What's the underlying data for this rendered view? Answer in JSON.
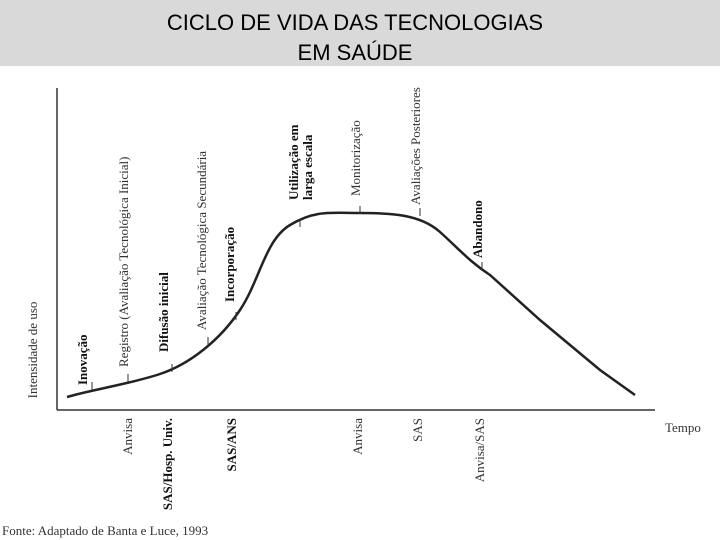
{
  "header": {
    "title_lines": [
      "CICLO DE VIDA DAS TECNOLOGIAS",
      "EM SAÚDE"
    ]
  },
  "diagram": {
    "y_axis_label": "Intensidade de uso",
    "x_axis_label": "Tempo",
    "stages": [
      [
        "Inovação"
      ],
      [
        "Registro (Avaliação Tecnológica Inicial)"
      ],
      [
        "Difusão inicial"
      ],
      [
        "Avaliação Tecnológica Secundária"
      ],
      [
        "Incorporação"
      ],
      [
        "Utilização em",
        "larga escala"
      ],
      [
        "Monitorização"
      ],
      [
        "Avaliações Posteriores"
      ],
      [
        "Abandono"
      ]
    ],
    "agencies": [
      "Anvisa",
      "SAS/Hosp. Univ.",
      "SAS/ANS",
      "Anvisa",
      "SAS",
      "Anvisa/SAS"
    ]
  },
  "source": "Fonte: Adaptado de Banta e Luce, 1993"
}
